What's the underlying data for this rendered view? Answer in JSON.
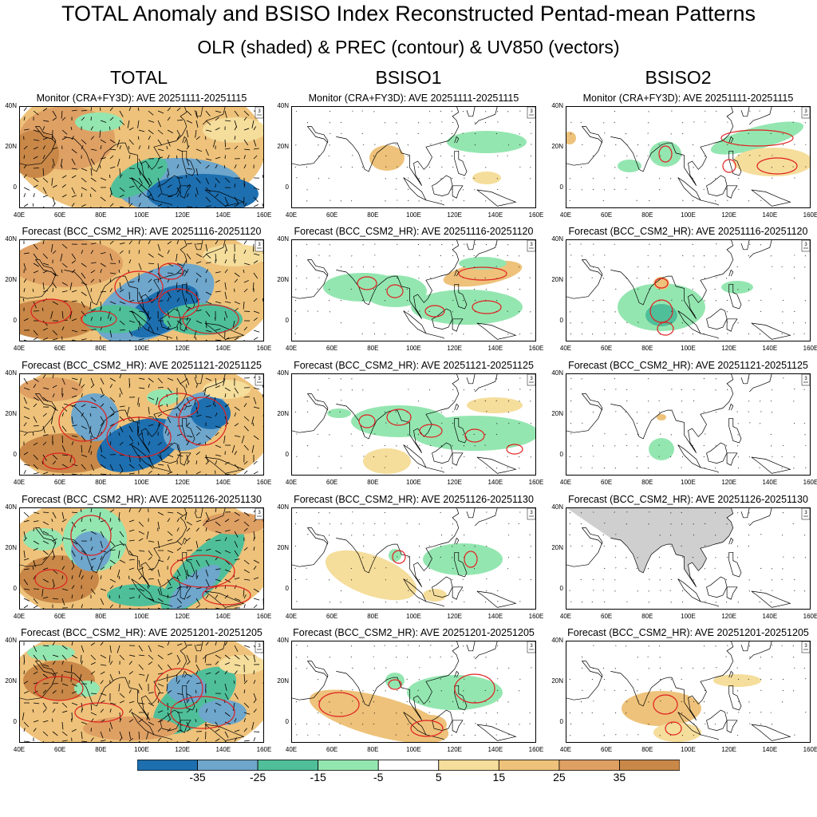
{
  "header": {
    "title": "TOTAL Anomaly and BSISO Index Reconstructed Pentad-mean Patterns",
    "subtitle": "OLR (shaded) & PREC (contour) & UV850 (vectors)"
  },
  "columns": [
    "TOTAL",
    "BSISO1",
    "BSISO2"
  ],
  "rows": [
    "Monitor (CRA+FY3D): AVE 20251111-20251115",
    "Forecast (BCC_CSM2_HR): AVE 20251116-20251120",
    "Forecast (BCC_CSM2_HR): AVE 20251121-20251125",
    "Forecast (BCC_CSM2_HR): AVE 20251126-20251130",
    "Forecast (BCC_CSM2_HR): AVE 20251201-20251205"
  ],
  "vector_ref": "3",
  "chart_data": {
    "type": "heatmap",
    "x_ticks": [
      "40E",
      "60E",
      "80E",
      "100E",
      "120E",
      "140E",
      "160E"
    ],
    "y_ticks": [
      "40N",
      "20N",
      "0"
    ],
    "xlim": [
      40,
      160
    ],
    "ylim": [
      -10,
      40
    ],
    "colorbar": {
      "labels": [
        "-35",
        "-25",
        "-15",
        "-5",
        "5",
        "15",
        "25",
        "35"
      ],
      "colors": [
        "#1d6fb0",
        "#6ea6cc",
        "#4fbf9a",
        "#94e6b0",
        "#ffffff",
        "#f5dd9b",
        "#eec27a",
        "#dfa064",
        "#c98848"
      ]
    },
    "colors": {
      "land_masked": "#cfcfcf",
      "prec_contour": "#e02020",
      "coast": "#000000"
    }
  }
}
